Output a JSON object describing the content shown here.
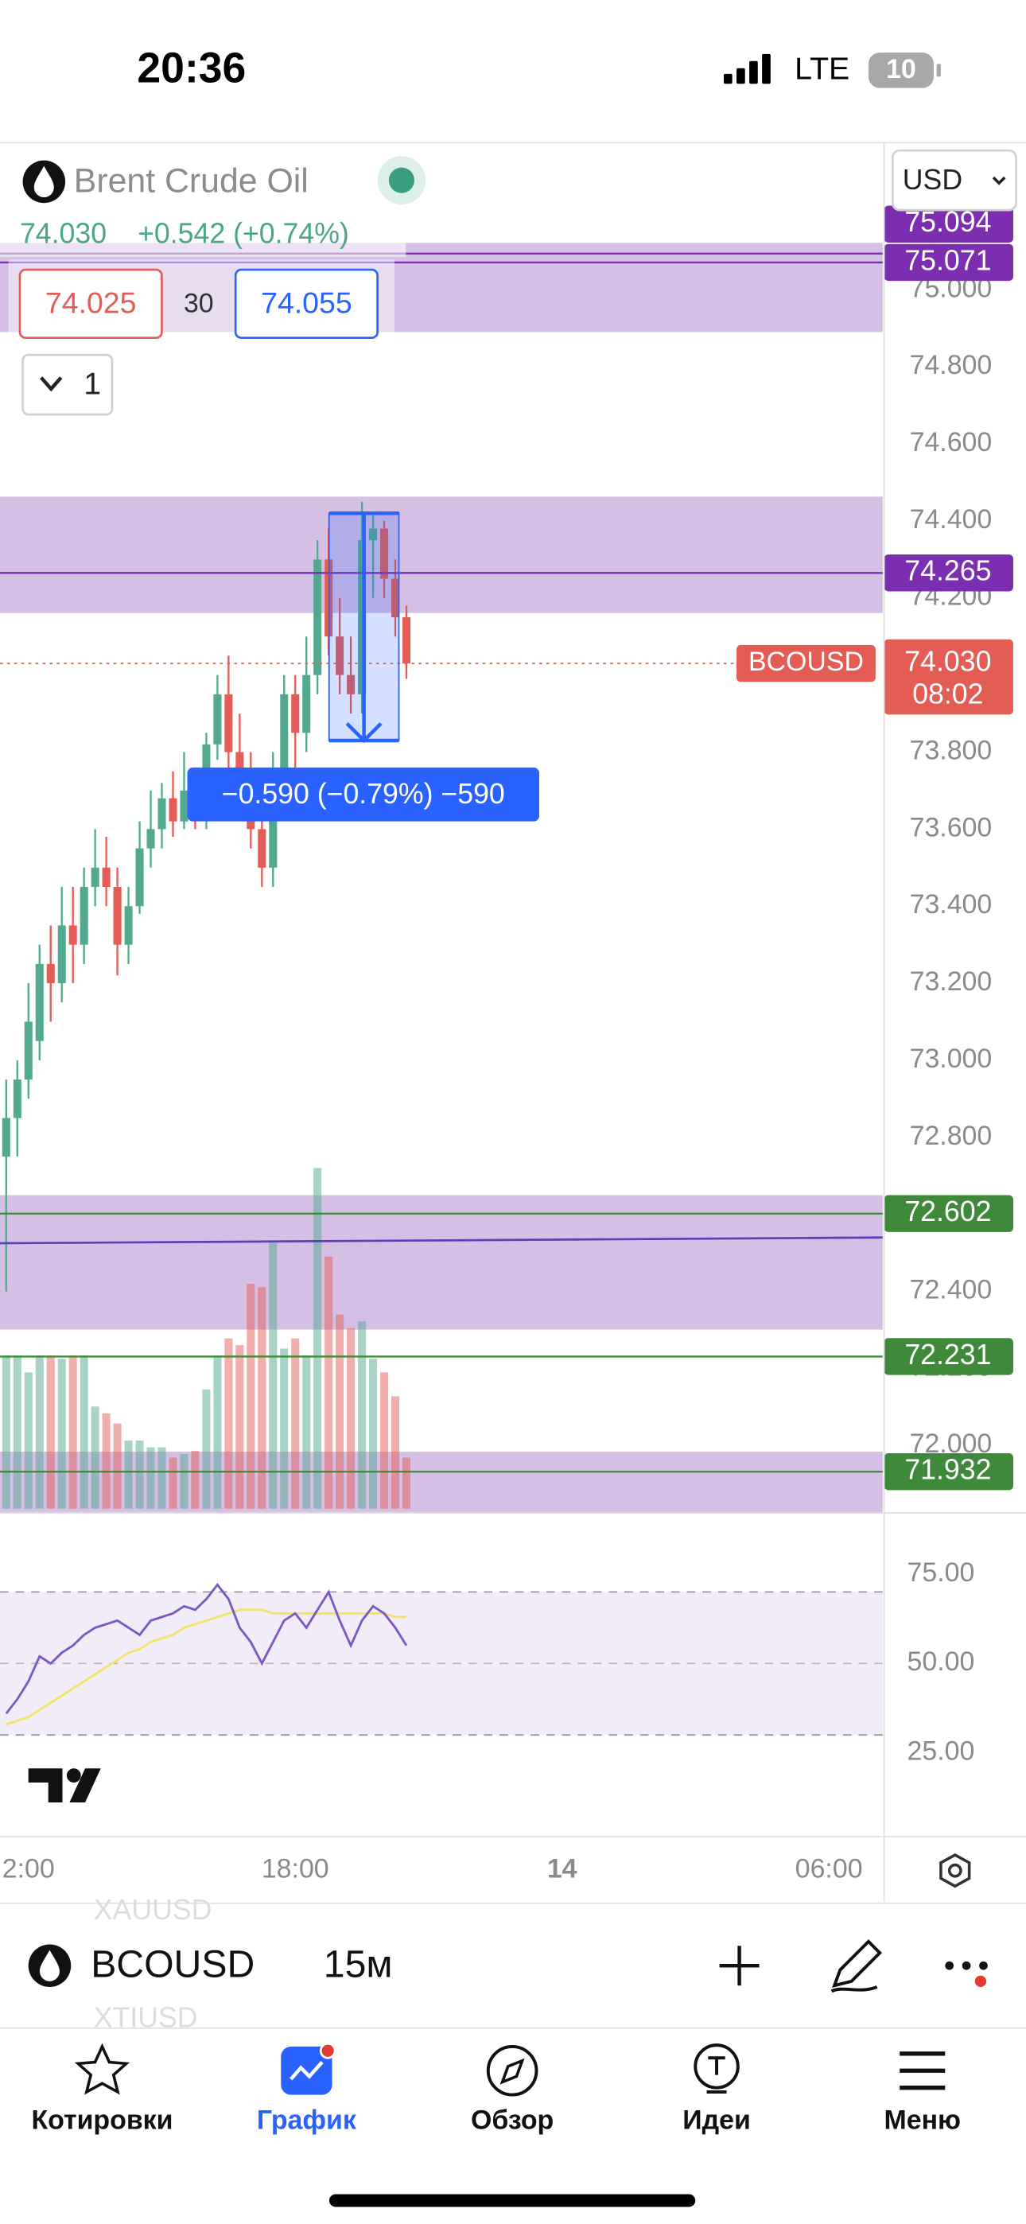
{
  "status_bar": {
    "time": "20:36",
    "network": "LTE",
    "battery": "10"
  },
  "header": {
    "symbol_name": "Brent Crude Oil",
    "currency": "USD",
    "last": "74.030",
    "change": "+0.542 (+0.74%)",
    "sell": "74.025",
    "spread": "30",
    "buy": "74.055",
    "layout_count": "1"
  },
  "chart_data": {
    "type": "candlestick",
    "x": [
      11.5,
      11.75,
      12,
      12.25,
      12.5,
      12.75,
      13,
      13.25,
      13.5,
      13.75,
      14,
      14.25,
      14.5,
      14.75,
      15,
      15.25,
      15.5,
      15.75,
      16,
      16.25,
      16.5,
      16.75,
      17,
      17.25,
      17.5,
      17.75,
      18,
      18.25,
      18.5,
      18.75,
      19,
      19.25,
      19.5,
      19.75,
      20,
      20.25,
      20.5
    ],
    "open": [
      72.75,
      72.85,
      72.95,
      73.05,
      73.25,
      73.2,
      73.35,
      73.3,
      73.45,
      73.5,
      73.45,
      73.3,
      73.4,
      73.55,
      73.6,
      73.68,
      73.62,
      73.7,
      73.65,
      73.82,
      73.95,
      73.8,
      73.75,
      73.6,
      73.5,
      73.75,
      73.95,
      73.85,
      74.0,
      74.3,
      74.1,
      74.0,
      73.95,
      74.35,
      74.38,
      74.25,
      74.15
    ],
    "high": [
      72.95,
      73.0,
      73.2,
      73.3,
      73.35,
      73.45,
      73.45,
      73.5,
      73.6,
      73.58,
      73.5,
      73.45,
      73.62,
      73.7,
      73.72,
      73.75,
      73.8,
      73.75,
      73.85,
      74.0,
      74.05,
      73.9,
      73.8,
      73.65,
      73.8,
      74.0,
      74.0,
      74.1,
      74.35,
      74.38,
      74.2,
      74.1,
      74.45,
      74.42,
      74.4,
      74.3,
      74.18
    ],
    "low": [
      72.4,
      72.75,
      72.9,
      73.0,
      73.1,
      73.15,
      73.2,
      73.25,
      73.4,
      73.4,
      73.22,
      73.25,
      73.38,
      73.5,
      73.55,
      73.58,
      73.6,
      73.6,
      73.6,
      73.78,
      73.75,
      73.7,
      73.55,
      73.45,
      73.45,
      73.7,
      73.75,
      73.8,
      73.95,
      74.05,
      73.95,
      73.9,
      73.9,
      74.2,
      74.2,
      74.1,
      73.99
    ],
    "close": [
      72.85,
      72.95,
      73.1,
      73.25,
      73.2,
      73.35,
      73.3,
      73.45,
      73.5,
      73.45,
      73.3,
      73.4,
      73.55,
      73.6,
      73.68,
      73.62,
      73.7,
      73.65,
      73.82,
      73.95,
      73.8,
      73.75,
      73.6,
      73.5,
      73.75,
      73.95,
      73.85,
      74.0,
      74.3,
      74.1,
      74.0,
      73.95,
      74.35,
      74.38,
      74.25,
      74.15,
      74.03
    ],
    "volume": [
      45,
      45,
      40,
      45,
      45,
      44,
      45,
      45,
      30,
      28,
      25,
      20,
      20,
      18,
      18,
      15,
      16,
      17,
      35,
      45,
      50,
      48,
      66,
      65,
      78,
      47,
      50,
      45,
      100,
      74,
      57,
      53,
      55,
      44,
      40,
      33,
      15
    ],
    "up_color": "#52a98f",
    "down_color": "#e35d55",
    "xlim": [
      11.36,
      31.21
    ],
    "xticks": [
      {
        "value": 12,
        "label": "2:00"
      },
      {
        "value": 18,
        "label": "18:00"
      },
      {
        "value": 24,
        "label": "14"
      },
      {
        "value": 30,
        "label": "06:00"
      }
    ],
    "ylim": [
      71.825,
      75.38
    ],
    "yticks": [
      {
        "value": 72,
        "label": "72.000"
      },
      {
        "value": 72.2,
        "label": "72.200"
      },
      {
        "value": 72.4,
        "label": "72.400"
      },
      {
        "value": 72.6,
        "label": "72.600"
      },
      {
        "value": 72.8,
        "label": "72.800"
      },
      {
        "value": 73,
        "label": "73.000"
      },
      {
        "value": 73.2,
        "label": "73.200"
      },
      {
        "value": 73.4,
        "label": "73.400"
      },
      {
        "value": 73.6,
        "label": "73.600"
      },
      {
        "value": 73.8,
        "label": "73.800"
      },
      {
        "value": 74,
        "label": "74.000"
      },
      {
        "value": 74.2,
        "label": "74.200"
      },
      {
        "value": 74.4,
        "label": "74.400"
      },
      {
        "value": 74.6,
        "label": "74.600"
      },
      {
        "value": 74.8,
        "label": "74.800"
      },
      {
        "value": 75,
        "label": "75.000"
      }
    ],
    "grid": false,
    "zones": [
      [
        75.122,
        74.89
      ],
      [
        74.463,
        74.161
      ],
      [
        72.65,
        72.301
      ],
      [
        71.984,
        71.825
      ]
    ],
    "zone_color": "#d5bfe5",
    "levels": [
      {
        "value": 75.094,
        "color": "#7b2fb0"
      },
      {
        "value": 75.071,
        "color": "#7b2fb0"
      },
      {
        "value": 74.265,
        "color": "#7b2fb0"
      },
      {
        "value": 72.602,
        "color": "#3f8a3a"
      },
      {
        "value": 72.231,
        "color": "#3f8a3a"
      },
      {
        "value": 71.932,
        "color": "#3f8a3a"
      }
    ],
    "trend_line": {
      "x": [
        11.36,
        31.21
      ],
      "y": [
        72.525,
        72.54
      ],
      "color": "#5b3fb8"
    },
    "last_price": {
      "value": 74.03,
      "label": "74.030",
      "symbol": "BCOUSD",
      "countdown": "08:02",
      "color": "#e35d55"
    },
    "measure": {
      "x": [
        18.76,
        20.33
      ],
      "y": [
        74.42,
        73.83
      ],
      "label": "−0.590 (−0.79%) −590",
      "color": "#2962ff"
    },
    "rsi": {
      "values": [
        36,
        40,
        45,
        52,
        50,
        53,
        55,
        58,
        60,
        61,
        62,
        60,
        58,
        62,
        63,
        64,
        66,
        65,
        68,
        72,
        68,
        60,
        56,
        50,
        56,
        62,
        64,
        60,
        65,
        70,
        62,
        55,
        62,
        66,
        64,
        60,
        55
      ],
      "ma": [
        33,
        34,
        35,
        37,
        39,
        41,
        43,
        45,
        47,
        49,
        51,
        53,
        54,
        56,
        57,
        58,
        60,
        61,
        62,
        63,
        64,
        65,
        65,
        65,
        64,
        64,
        64,
        64,
        64,
        64,
        64,
        64,
        64,
        64,
        64,
        63,
        63
      ],
      "color": "#7e57c2",
      "ma_color": "#f3e26a",
      "ylim": [
        2.4,
        91.3
      ],
      "band": [
        70,
        30
      ],
      "yticks": [
        {
          "value": 75,
          "label": "75.00"
        },
        {
          "value": 50,
          "label": "50.00"
        },
        {
          "value": 25,
          "label": "25.00"
        }
      ]
    }
  },
  "toolbar": {
    "symbol": "BCOUSD",
    "interval": "15м",
    "ghost_above": "XAUUSD",
    "ghost_below": "XTIUSD"
  },
  "tabs": [
    "Котировки",
    "График",
    "Обзор",
    "Идеи",
    "Меню"
  ]
}
